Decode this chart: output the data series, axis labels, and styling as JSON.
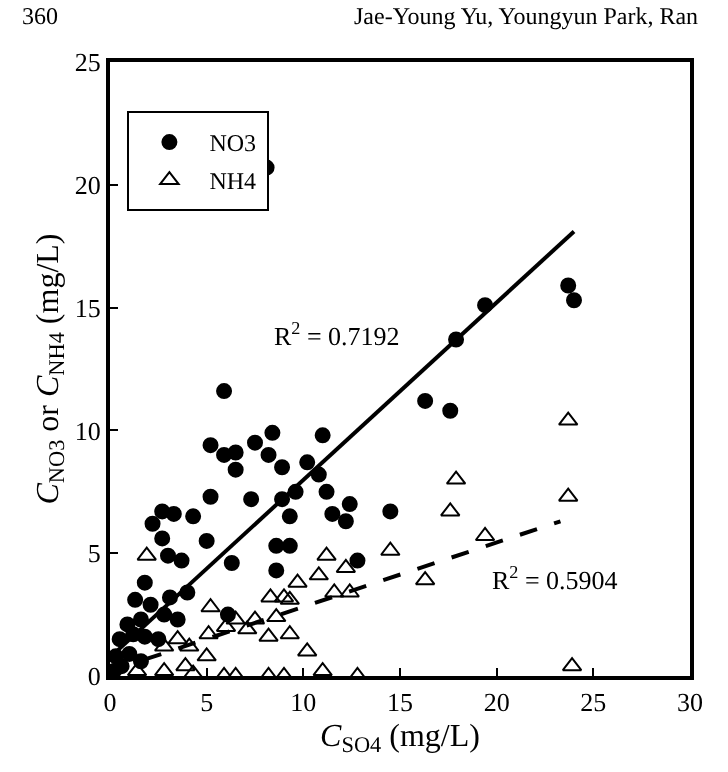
{
  "chart_data": {
    "type": "scatter",
    "xlabel": "C$_{SO4}$ (mg/L)",
    "ylabel": "C$_{NO3}$ or C$_{NH4}$ (mg/L)",
    "xlim": [
      0,
      30
    ],
    "xticks": [
      0,
      5,
      10,
      15,
      20,
      25,
      30
    ],
    "ylim": [
      0,
      25
    ],
    "yticks": [
      0,
      5,
      10,
      15,
      20,
      25
    ],
    "legend": "top left",
    "series": [
      {
        "name": "NO3",
        "color": "#000000",
        "marker": "circle",
        "x": [
          8.1,
          23.7,
          24.0,
          19.4,
          17.9,
          16.3,
          17.6,
          5.9,
          5.2,
          5.9,
          6.5,
          6.5,
          7.5,
          8.2,
          8.4,
          8.9,
          10.2,
          10.8,
          11.0,
          5.2,
          7.3,
          8.9,
          9.6,
          11.2,
          12.4,
          11.5,
          12.2,
          9.3,
          14.5,
          4.3,
          3.3,
          2.7,
          2.2,
          2.7,
          5.0,
          8.6,
          9.3,
          3.0,
          3.7,
          6.3,
          12.8,
          8.6,
          1.8,
          1.3,
          2.1,
          3.1,
          4.0,
          0.9,
          1.6,
          2.8,
          3.5,
          6.1,
          0.5,
          1.2,
          1.8,
          2.5,
          0.3,
          1.0,
          1.6,
          0.2,
          0.6
        ],
        "values": [
          20.7,
          15.9,
          15.3,
          15.1,
          13.7,
          11.2,
          10.8,
          11.6,
          9.4,
          9.0,
          9.1,
          8.4,
          9.5,
          9.0,
          9.9,
          8.5,
          8.7,
          8.2,
          9.8,
          7.3,
          7.2,
          7.2,
          7.5,
          7.5,
          7.0,
          6.6,
          6.3,
          6.5,
          6.7,
          6.5,
          6.6,
          6.7,
          6.2,
          5.6,
          5.5,
          5.3,
          5.3,
          4.9,
          4.7,
          4.6,
          4.7,
          4.3,
          3.8,
          3.1,
          2.9,
          3.2,
          3.4,
          2.1,
          2.3,
          2.5,
          2.3,
          2.5,
          1.5,
          1.7,
          1.6,
          1.5,
          0.8,
          0.9,
          0.6,
          0.2,
          0.4
        ]
      },
      {
        "name": "NH4",
        "color": "#000000",
        "marker": "triangle",
        "x": [
          23.7,
          17.9,
          23.7,
          17.6,
          19.4,
          14.5,
          11.2,
          12.2,
          10.8,
          16.3,
          9.7,
          11.6,
          12.4,
          8.3,
          9.0,
          9.3,
          1.9,
          5.2,
          7.5,
          6.5,
          6.0,
          8.6,
          8.2,
          9.3,
          5.1,
          7.1,
          10.2,
          11.0,
          12.8,
          23.9,
          5.9,
          6.5,
          8.2,
          9.0,
          5.0,
          4.1,
          2.8,
          3.5,
          3.9,
          2.8,
          1.4,
          4.3
        ],
        "values": [
          10.4,
          8.0,
          7.3,
          6.7,
          5.7,
          5.1,
          4.9,
          4.4,
          4.1,
          3.9,
          3.8,
          3.4,
          3.4,
          3.2,
          3.2,
          3.1,
          4.9,
          2.8,
          2.3,
          2.3,
          2.0,
          2.4,
          1.6,
          1.7,
          1.7,
          1.9,
          1.0,
          0.2,
          0.0,
          0.4,
          0.0,
          0.0,
          0.0,
          0.0,
          0.8,
          1.2,
          1.2,
          1.5,
          0.4,
          0.2,
          0.2,
          0.1
        ]
      },
      {
        "type": "line",
        "color": "#000000",
        "line_style": "solid",
        "x": [
          0.2,
          24.0
        ],
        "values": [
          0.9,
          18.1
        ]
      },
      {
        "type": "line",
        "color": "#000000",
        "line_style": "dashed",
        "x": [
          0.0,
          23.3
        ],
        "values": [
          0.2,
          6.3
        ]
      }
    ],
    "annotations": [
      "R$^{2}$ = 0.7192",
      "R$^{2}$ = 0.5904",
      "360",
      "Jae-Young Yu, Youngyun Park, Ran"
    ]
  }
}
